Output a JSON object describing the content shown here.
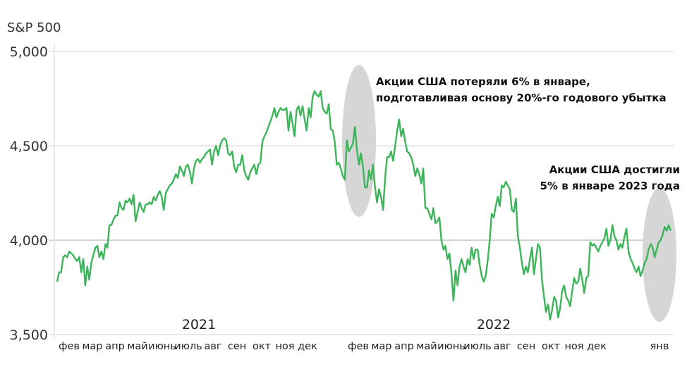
{
  "chart_data": {
    "type": "line",
    "title": "S&P 500",
    "xlabel": "",
    "ylabel": "",
    "ylim": [
      3500,
      5000
    ],
    "y_ticks": [
      "3,500",
      "4,000",
      "4,500",
      "5,000"
    ],
    "y_tick_values": [
      3500,
      4000,
      4500,
      5000
    ],
    "grid": true,
    "line_color": "#3cb55a",
    "highlight_color": "#d6d6d6",
    "x_month_labels": [
      "фев",
      "мар",
      "апр",
      "май",
      "июнь",
      "июль",
      "авг",
      "сен",
      "окт",
      "ноя",
      "дек",
      "фев",
      "мар",
      "апр",
      "май",
      "июнь",
      "июль",
      "авг",
      "сен",
      "окт",
      "ноя",
      "дек",
      "янв"
    ],
    "x_year_labels": [
      "2021",
      "2022"
    ],
    "annotations": [
      {
        "lines": [
          "Акции США потеряли 6% в январе,",
          "подготавливая основу 20%-го годового убытка"
        ],
        "period": "январь 2022"
      },
      {
        "lines": [
          "Акции США достигли",
          "5% в январе 2023 года"
        ],
        "period": "январь 2023"
      }
    ],
    "series": [
      {
        "name": "S&P 500",
        "x_start": "2021-01",
        "x_end": "2023-01",
        "values": [
          3780,
          3830,
          3830,
          3910,
          3920,
          3910,
          3940,
          3930,
          3920,
          3900,
          3890,
          3910,
          3830,
          3900,
          3760,
          3860,
          3790,
          3880,
          3920,
          3960,
          3970,
          3910,
          3940,
          3900,
          3980,
          3960,
          4080,
          4080,
          4110,
          4130,
          4130,
          4200,
          4170,
          4160,
          4210,
          4200,
          4220,
          4190,
          4240,
          4100,
          4150,
          4200,
          4170,
          4150,
          4190,
          4190,
          4200,
          4190,
          4230,
          4210,
          4240,
          4260,
          4230,
          4160,
          4250,
          4270,
          4290,
          4300,
          4320,
          4350,
          4330,
          4390,
          4370,
          4340,
          4390,
          4400,
          4360,
          4300,
          4380,
          4420,
          4430,
          4410,
          4430,
          4440,
          4460,
          4470,
          4480,
          4400,
          4470,
          4500,
          4450,
          4500,
          4530,
          4540,
          4530,
          4460,
          4450,
          4470,
          4390,
          4360,
          4400,
          4400,
          4450,
          4370,
          4340,
          4320,
          4360,
          4380,
          4400,
          4350,
          4400,
          4410,
          4520,
          4550,
          4570,
          4600,
          4630,
          4660,
          4700,
          4650,
          4680,
          4700,
          4690,
          4690,
          4700,
          4580,
          4680,
          4620,
          4550,
          4690,
          4710,
          4660,
          4710,
          4640,
          4580,
          4700,
          4650,
          4760,
          4790,
          4770,
          4760,
          4790,
          4700,
          4680,
          4670,
          4720,
          4590,
          4580,
          4520,
          4400,
          4410,
          4380,
          4340,
          4320,
          4530,
          4470,
          4490,
          4510,
          4600,
          4480,
          4400,
          4460,
          4390,
          4280,
          4280,
          4370,
          4320,
          4400,
          4280,
          4200,
          4270,
          4230,
          4160,
          4330,
          4440,
          4440,
          4470,
          4420,
          4500,
          4580,
          4640,
          4550,
          4590,
          4520,
          4470,
          4460,
          4440,
          4400,
          4340,
          4380,
          4350,
          4300,
          4380,
          4170,
          4170,
          4140,
          4110,
          4170,
          4090,
          4100,
          4120,
          4000,
          3950,
          3970,
          3900,
          3930,
          3820,
          3680,
          3840,
          3760,
          3860,
          3900,
          3860,
          3830,
          3900,
          3870,
          3960,
          3900,
          3950,
          3950,
          3870,
          3810,
          3780,
          3810,
          3890,
          4000,
          4140,
          4120,
          4180,
          4230,
          4180,
          4290,
          4280,
          4310,
          4290,
          4270,
          4160,
          4150,
          4220,
          4020,
          3960,
          3880,
          3820,
          3860,
          3830,
          3900,
          3960,
          3820,
          3900,
          3980,
          3960,
          3790,
          3700,
          3620,
          3660,
          3580,
          3630,
          3700,
          3680,
          3590,
          3640,
          3730,
          3760,
          3700,
          3680,
          3650,
          3730,
          3800,
          3770,
          3780,
          3850,
          3790,
          3720,
          3800,
          3810,
          3990,
          3970,
          3980,
          3960,
          3940,
          3970,
          3990,
          4010,
          4060,
          3970,
          4000,
          4080,
          4020,
          4000,
          3950,
          3980,
          3960,
          4020,
          4060,
          3940,
          3900,
          3880,
          3850,
          3830,
          3860,
          3810,
          3840,
          3880,
          3900,
          3950,
          3980,
          3960,
          3910,
          3950,
          3990,
          4000,
          4030,
          4070,
          4050,
          4080,
          4050
        ]
      }
    ]
  }
}
